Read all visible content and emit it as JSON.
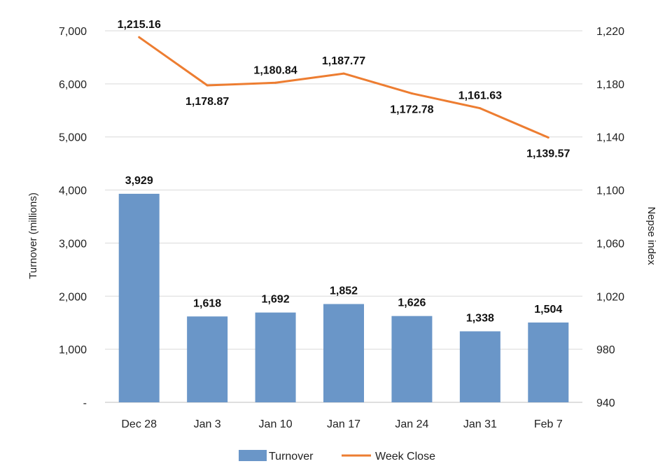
{
  "chart_data": {
    "type": "bar+line",
    "categories": [
      "Dec 28",
      "Jan 3",
      "Jan 10",
      "Jan 17",
      "Jan 24",
      "Jan 31",
      "Feb 7"
    ],
    "series": [
      {
        "name": "Turnover",
        "type": "bar",
        "axis": "left",
        "color": "#6a96c8",
        "values": [
          3929,
          1618,
          1692,
          1852,
          1626,
          1338,
          1504
        ],
        "labels": [
          "3,929",
          "1,618",
          "1,692",
          "1,852",
          "1,626",
          "1,338",
          "1,504"
        ]
      },
      {
        "name": "Week Close",
        "type": "line",
        "axis": "right",
        "color": "#ed7d31",
        "values": [
          1215.16,
          1178.87,
          1180.84,
          1187.77,
          1172.78,
          1161.63,
          1139.57
        ],
        "labels": [
          "1,215.16",
          "1,178.87",
          "1,180.84",
          "1,187.77",
          "1,172.78",
          "1,161.63",
          "1,139.57"
        ]
      }
    ],
    "left_axis": {
      "title": "Turnover (millions)",
      "range": [
        0,
        7000
      ],
      "ticks": [
        0,
        1000,
        2000,
        3000,
        4000,
        5000,
        6000,
        7000
      ],
      "tick_labels": [
        "-",
        "1,000",
        "2,000",
        "3,000",
        "4,000",
        "5,000",
        "6,000",
        "7,000"
      ]
    },
    "right_axis": {
      "title": "Nepse index",
      "range": [
        940,
        1220
      ],
      "ticks": [
        940,
        980,
        1020,
        1060,
        1100,
        1140,
        1180,
        1220
      ],
      "tick_labels": [
        "940",
        "980",
        "1,020",
        "1,060",
        "1,100",
        "1,140",
        "1,180",
        "1,220"
      ]
    },
    "grid": true,
    "legend": {
      "position": "bottom",
      "entries": [
        "Turnover",
        "Week Close"
      ]
    }
  }
}
